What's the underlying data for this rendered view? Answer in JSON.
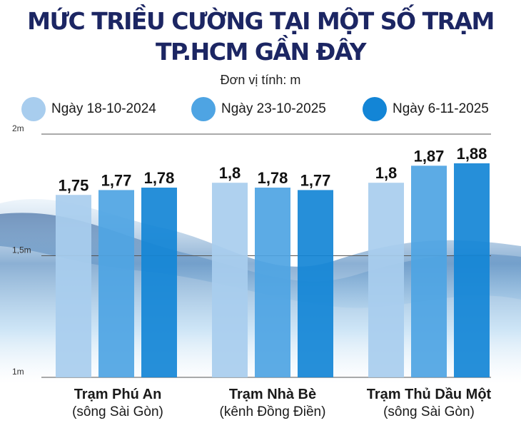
{
  "title_line1": "MỨC TRIỀU CƯỜNG TẠI MỘT SỐ TRẠM",
  "title_line2": "TP.HCM GẦN ĐÂY",
  "unit": "Đơn vị tính: m",
  "colors": {
    "title": "#1c2663",
    "series": [
      "#a8cdee",
      "#4ea4e3",
      "#1385d6"
    ],
    "gridline": "#555555"
  },
  "chart_data": {
    "type": "bar",
    "title": "MỨC TRIỀU CƯỜNG TẠI MỘT SỐ TRẠM TP.HCM GẦN ĐÂY",
    "ylabel": "Đơn vị tính: m",
    "ylim": [
      1,
      2
    ],
    "yticks": [
      {
        "value": 2,
        "label": "2m"
      },
      {
        "value": 1.5,
        "label": "1,5m"
      },
      {
        "value": 1,
        "label": "1m"
      }
    ],
    "legend_position": "top",
    "categories": [
      {
        "name": "Trạm Phú An",
        "sub": "(sông Sài Gòn)"
      },
      {
        "name": "Trạm Nhà Bè",
        "sub": "(kênh Đồng Điền)"
      },
      {
        "name": "Trạm Thủ Dầu Một",
        "sub": "(sông Sài Gòn)"
      }
    ],
    "series": [
      {
        "name": "Ngày 18-10-2024",
        "values": [
          1.75,
          1.8,
          1.8
        ],
        "labels": [
          "1,75",
          "1,8",
          "1,8"
        ]
      },
      {
        "name": "Ngày 23-10-2025",
        "values": [
          1.77,
          1.78,
          1.87
        ],
        "labels": [
          "1,77",
          "1,78",
          "1,87"
        ]
      },
      {
        "name": "Ngày 6-11-2025",
        "values": [
          1.78,
          1.77,
          1.88
        ],
        "labels": [
          "1,78",
          "1,77",
          "1,88"
        ]
      }
    ]
  }
}
